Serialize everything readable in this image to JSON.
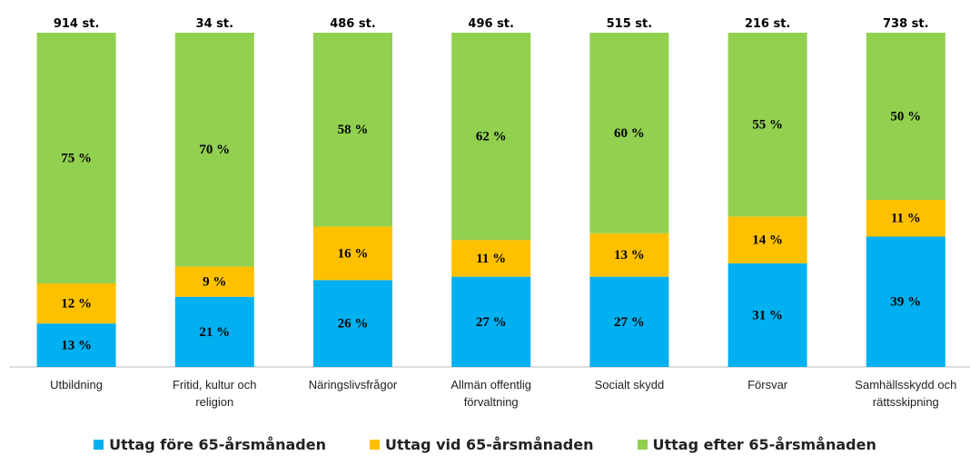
{
  "chart_data": {
    "type": "stacked_bar",
    "categories": [
      "Utbildning",
      "Fritid, kultur och religion",
      "Näringslivsfrågor",
      "Allmän offentlig förvaltning",
      "Socialt skydd",
      "Försvar",
      "Samhällsskydd och rättsskipning"
    ],
    "annotations": [
      "914 st.",
      "34 st.",
      "486 st.",
      "496 st.",
      "515 st.",
      "216 st.",
      "738 st."
    ],
    "series": [
      {
        "name": "Uttag före 65-årsmånaden",
        "color": "#00b0f0",
        "values": [
          13,
          21,
          26,
          27,
          27,
          31,
          39
        ],
        "value_labels": [
          "13 %",
          "21 %",
          "26 %",
          "27 %",
          "27 %",
          "31 %",
          "39 %"
        ]
      },
      {
        "name": "Uttag vid 65-årsmånaden",
        "color": "#ffc000",
        "values": [
          12,
          9,
          16,
          11,
          13,
          14,
          11
        ],
        "value_labels": [
          "12 %",
          "9 %",
          "16 %",
          "11 %",
          "13 %",
          "14 %",
          "11 %"
        ]
      },
      {
        "name": "Uttag efter 65-årsmånaden",
        "color": "#92d050",
        "values": [
          75,
          70,
          58,
          62,
          60,
          55,
          50
        ],
        "value_labels": [
          "75 %",
          "70 %",
          "58 %",
          "62 %",
          "60 %",
          "55 %",
          "50 %"
        ]
      }
    ]
  }
}
